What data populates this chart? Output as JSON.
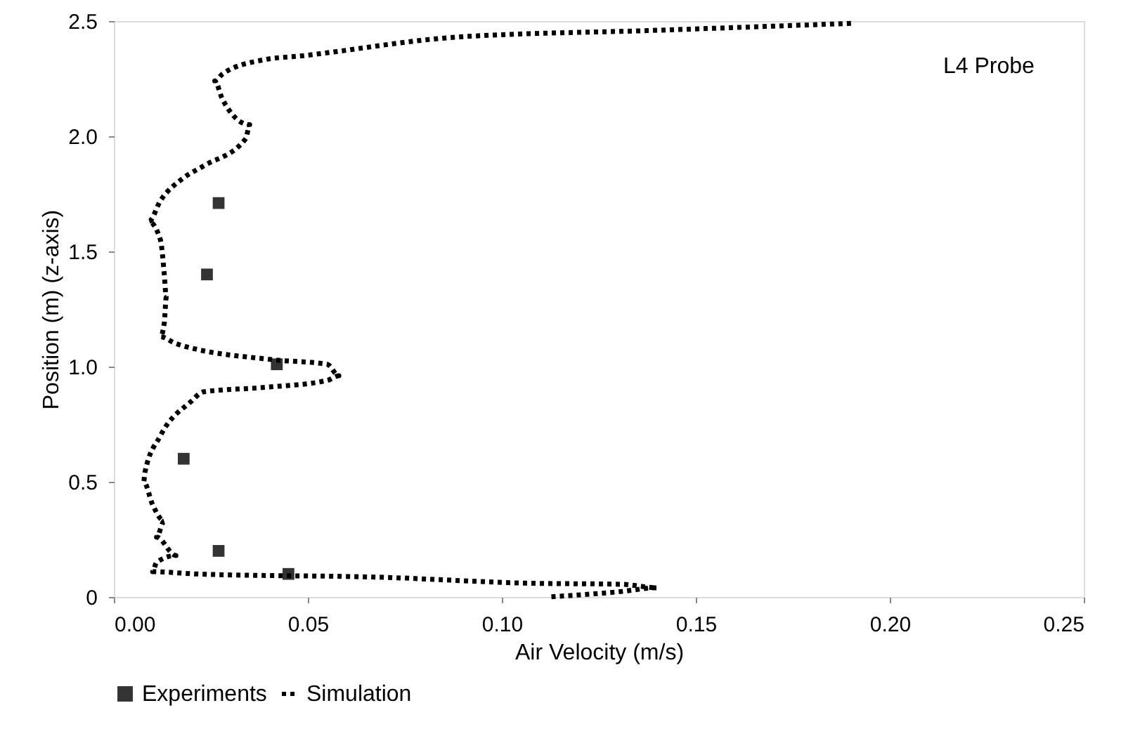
{
  "chart_data": {
    "type": "scatter",
    "xlabel": "Air Velocity (m/s)",
    "ylabel": "Position (m) (z-axis)",
    "annotations": [
      "L4 Probe"
    ],
    "xlim": [
      0,
      0.25
    ],
    "xticks": [
      {
        "value": 0,
        "label": "0.00"
      },
      {
        "value": 0.05,
        "label": "0.05"
      },
      {
        "value": 0.1,
        "label": "0.10"
      },
      {
        "value": 0.15,
        "label": "0.15"
      },
      {
        "value": 0.2,
        "label": "0.20"
      },
      {
        "value": 0.25,
        "label": "0.25"
      }
    ],
    "ylim": [
      0,
      2.5
    ],
    "yticks": [
      {
        "value": 0,
        "label": "0"
      },
      {
        "value": 0.5,
        "label": "0.5"
      },
      {
        "value": 1,
        "label": "1.0"
      },
      {
        "value": 1.5,
        "label": "1.5"
      },
      {
        "value": 2,
        "label": "2.0"
      },
      {
        "value": 2.5,
        "label": "2.5"
      }
    ],
    "grid": false,
    "legend": "bottom",
    "series": [
      {
        "name": "Experiments",
        "marker": "square",
        "color": "#333333",
        "x": [
          0.027,
          0.024,
          0.042,
          0.018,
          0.027,
          0.045
        ],
        "values": [
          1.71,
          1.4,
          1.01,
          0.6,
          0.2,
          0.1
        ]
      },
      {
        "name": "Simulation",
        "type": "line",
        "line_style": "dotted",
        "marker": "none",
        "color": "#000000",
        "x": [
          0.19,
          0.14,
          0.088,
          0.049,
          0.038,
          0.028,
          0.026,
          0.028,
          0.035,
          0.034,
          0.023,
          0.018,
          0.012,
          0.009,
          0.012,
          0.013,
          0.0135,
          0.013,
          0.012,
          0.016,
          0.041,
          0.055,
          0.058,
          0.055,
          0.039,
          0.023,
          0.02,
          0.012,
          0.008,
          0.0077,
          0.01,
          0.013,
          0.011,
          0.016,
          0.011,
          0.01,
          0.021,
          0.07,
          0.106,
          0.131,
          0.14,
          0.131,
          0.112
        ],
        "values": [
          2.49,
          2.46,
          2.43,
          2.35,
          2.33,
          2.27,
          2.24,
          2.16,
          2.05,
          1.99,
          1.87,
          1.82,
          1.72,
          1.63,
          1.55,
          1.4,
          1.3,
          1.19,
          1.13,
          1.1,
          1.03,
          1.01,
          0.96,
          0.94,
          0.91,
          0.89,
          0.85,
          0.7,
          0.54,
          0.5,
          0.4,
          0.33,
          0.26,
          0.18,
          0.15,
          0.11,
          0.1,
          0.085,
          0.06,
          0.055,
          0.04,
          0.024,
          0.0
        ]
      }
    ]
  }
}
